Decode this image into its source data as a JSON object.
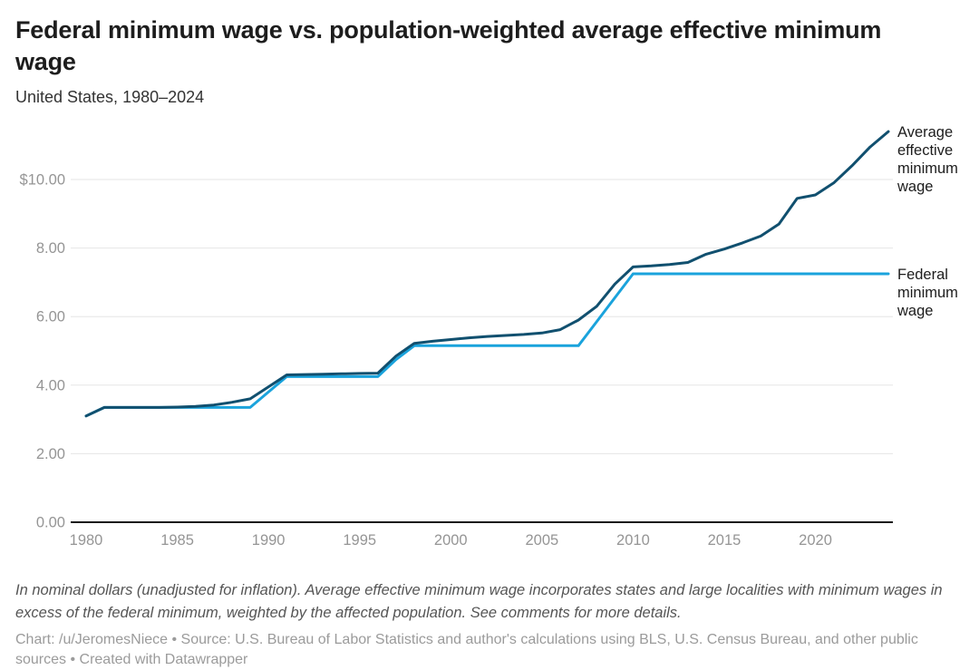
{
  "header": {
    "title": "Federal minimum wage vs. population-weighted average effective minimum wage",
    "subtitle": "United States, 1980–2024"
  },
  "chart_data": {
    "type": "line",
    "x": [
      1980,
      1981,
      1982,
      1983,
      1984,
      1985,
      1986,
      1987,
      1988,
      1989,
      1990,
      1991,
      1992,
      1993,
      1994,
      1995,
      1996,
      1997,
      1998,
      1999,
      2000,
      2001,
      2002,
      2003,
      2004,
      2005,
      2006,
      2007,
      2008,
      2009,
      2010,
      2011,
      2012,
      2013,
      2014,
      2015,
      2016,
      2017,
      2018,
      2019,
      2020,
      2021,
      2022,
      2023,
      2024
    ],
    "series": [
      {
        "name": "Average effective minimum wage",
        "color": "#11506f",
        "values": [
          3.1,
          3.35,
          3.35,
          3.35,
          3.35,
          3.36,
          3.38,
          3.42,
          3.5,
          3.6,
          3.95,
          4.3,
          4.31,
          4.32,
          4.33,
          4.34,
          4.35,
          4.85,
          5.22,
          5.28,
          5.33,
          5.38,
          5.42,
          5.45,
          5.48,
          5.52,
          5.62,
          5.9,
          6.3,
          6.95,
          7.45,
          7.48,
          7.52,
          7.58,
          7.82,
          7.97,
          8.15,
          8.35,
          8.7,
          9.45,
          9.55,
          9.9,
          10.4,
          10.95,
          11.4
        ]
      },
      {
        "name": "Federal minimum wage",
        "color": "#1aa3dc",
        "values": [
          3.1,
          3.35,
          3.35,
          3.35,
          3.35,
          3.35,
          3.35,
          3.35,
          3.35,
          3.35,
          3.8,
          4.25,
          4.25,
          4.25,
          4.25,
          4.25,
          4.25,
          4.75,
          5.15,
          5.15,
          5.15,
          5.15,
          5.15,
          5.15,
          5.15,
          5.15,
          5.15,
          5.15,
          5.85,
          6.55,
          7.25,
          7.25,
          7.25,
          7.25,
          7.25,
          7.25,
          7.25,
          7.25,
          7.25,
          7.25,
          7.25,
          7.25,
          7.25,
          7.25,
          7.25
        ]
      }
    ],
    "ylim": [
      0,
      11.6
    ],
    "yticks": {
      "values": [
        0,
        2,
        4,
        6,
        8,
        10
      ],
      "labels": [
        "0.00",
        "2.00",
        "4.00",
        "6.00",
        "8.00",
        "$10.00"
      ]
    },
    "xticks": [
      1980,
      1985,
      1990,
      1995,
      2000,
      2005,
      2010,
      2015,
      2020
    ],
    "grid": "horizontal",
    "legend_position": "right-edge-labels"
  },
  "footer": {
    "notes": "In nominal dollars (unadjusted for inflation). Average effective minimum wage incorporates states and large localities with minimum wages in excess of the federal minimum, weighted by the affected population. See comments for more details.",
    "byline": "Chart: /u/JeromesNiece • Source: U.S. Bureau of Labor Statistics and author's calculations using BLS, U.S. Census Bureau, and other public sources • Created with Datawrapper"
  },
  "colors": {
    "grid": "#e6e6e6",
    "axis_line": "#181818",
    "tick_label": "#959595",
    "average_line": "#11506f",
    "federal_line": "#1aa3dc"
  }
}
